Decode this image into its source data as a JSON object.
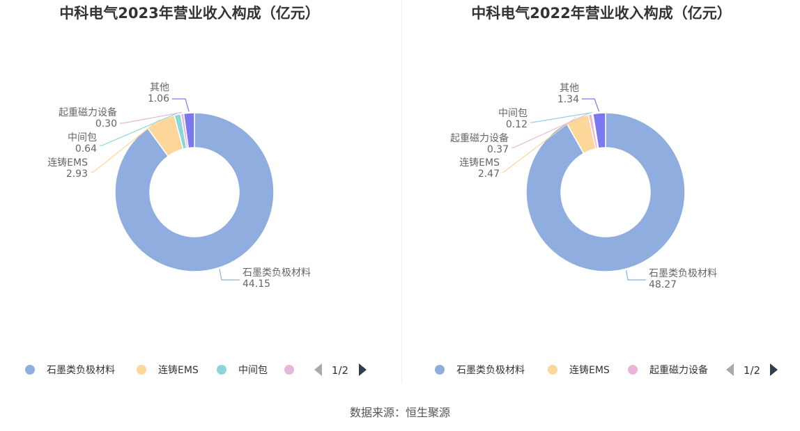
{
  "chart_data": [
    {
      "type": "pie",
      "title": "中科电气2023年营业收入构成（亿元）",
      "series": [
        {
          "name": "石墨类负极材料",
          "value": 44.15,
          "color": "#8fadde"
        },
        {
          "name": "连铸EMS",
          "value": 2.93,
          "color": "#fdd79a"
        },
        {
          "name": "中间包",
          "value": 0.64,
          "color": "#8ad6dc"
        },
        {
          "name": "起重磁力设备",
          "value": 0.3,
          "color": "#e8b6d9"
        },
        {
          "name": "其他",
          "value": 1.06,
          "color": "#7a78f0"
        }
      ],
      "labels": [
        {
          "name": "石墨类负极材料",
          "value_text": "44.15"
        },
        {
          "name": "连铸EMS",
          "value_text": "2.93"
        },
        {
          "name": "中间包",
          "value_text": "0.64"
        },
        {
          "name": "起重磁力设备",
          "value_text": "0.30"
        },
        {
          "name": "其他",
          "value_text": "1.06"
        }
      ],
      "legend": {
        "placement": "bottom",
        "visible_items": [
          "石墨类负极材料",
          "连铸EMS",
          "中间包",
          ""
        ],
        "page_text": "1/2"
      }
    },
    {
      "type": "pie",
      "title": "中科电气2022年营业收入构成（亿元）",
      "series": [
        {
          "name": "石墨类负极材料",
          "value": 48.27,
          "color": "#8fadde"
        },
        {
          "name": "连铸EMS",
          "value": 2.47,
          "color": "#fdd79a"
        },
        {
          "name": "起重磁力设备",
          "value": 0.37,
          "color": "#e8b6d9"
        },
        {
          "name": "中间包",
          "value": 0.12,
          "color": "#8ad6dc"
        },
        {
          "name": "其他",
          "value": 1.34,
          "color": "#7a78f0"
        }
      ],
      "labels": [
        {
          "name": "石墨类负极材料",
          "value_text": "48.27"
        },
        {
          "name": "连铸EMS",
          "value_text": "2.47"
        },
        {
          "name": "起重磁力设备",
          "value_text": "0.37"
        },
        {
          "name": "中间包",
          "value_text": "0.12"
        },
        {
          "name": "其他",
          "value_text": "1.34"
        }
      ],
      "legend": {
        "placement": "bottom",
        "visible_items": [
          "石墨类负极材料",
          "连铸EMS",
          "起重磁力设备"
        ],
        "page_text": "1/2"
      }
    }
  ],
  "source_text": "数据来源：恒生聚源"
}
